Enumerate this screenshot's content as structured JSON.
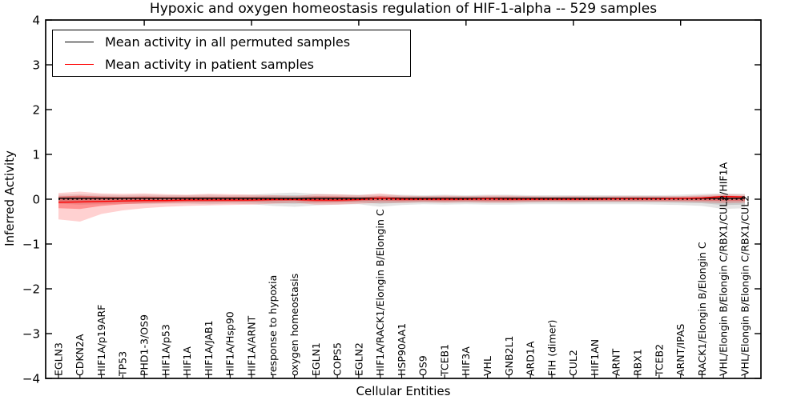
{
  "title": "Hypoxic and oxygen homeostasis regulation of HIF-1-alpha -- 529 samples",
  "axes": {
    "x_label": "Cellular Entities",
    "y_label": "Inferred Activity",
    "y_tick_labels": [
      "4",
      "3",
      "2",
      "1",
      "0",
      "−1",
      "−2",
      "−3",
      "−4"
    ],
    "y_tick_values": [
      4,
      3,
      2,
      1,
      0,
      -1,
      -2,
      -3,
      -4
    ]
  },
  "legend": {
    "entries": [
      {
        "label": "Mean activity in all permuted samples",
        "color": "#000000"
      },
      {
        "label": "Mean activity in patient samples",
        "color": "#ff0000"
      }
    ]
  },
  "colors": {
    "permuted_line": "#000000",
    "patient_line": "#ff0000",
    "zero_dotted_line": "#000000",
    "permuted_band_outer": "rgba(0,0,0,0.10)",
    "permuted_band_inner": "rgba(0,0,0,0.12)",
    "patient_band_outer": "rgba(255,0,0,0.18)",
    "patient_band_inner": "rgba(255,0,0,0.30)",
    "axis": "#000000"
  },
  "chart_data": {
    "type": "line",
    "title": "Hypoxic and oxygen homeostasis regulation of HIF-1-alpha -- 529 samples",
    "xlabel": "Cellular Entities",
    "ylabel": "Inferred Activity",
    "ylim": [
      -4,
      4
    ],
    "grid": false,
    "legend_position": "upper left",
    "x_tick_label_rotation": 90,
    "top_axis_major_tick_indices": [
      4,
      9,
      14,
      19,
      24,
      29
    ],
    "categories": [
      "EGLN3",
      "CDKN2A",
      "HIF1A/p19ARF",
      "TP53",
      "PHD1-3/OS9",
      "HIF1A/p53",
      "HIF1A",
      "HIF1A/JAB1",
      "HIF1A/Hsp90",
      "HIF1A/ARNT",
      "response to hypoxia",
      "oxygen homeostasis",
      "EGLN1",
      "COPS5",
      "EGLN2",
      "HIF1A/RACK1/Elongin B/Elongin C",
      "HSP90AA1",
      "OS9",
      "TCEB1",
      "HIF3A",
      "VHL",
      "GNB2L1",
      "ARD1A",
      "FIH (dimer)",
      "CUL2",
      "HIF1AN",
      "ARNT",
      "RBX1",
      "TCEB2",
      "ARNT/IPAS",
      "RACK1/Elongin B/Elongin C",
      "VHL/Elongin B/Elongin C/RBX1/CUL2/HIF1A",
      "VHL/Elongin B/Elongin C/RBX1/CUL2"
    ],
    "series": [
      {
        "name": "Mean activity in all permuted samples",
        "style": "solid",
        "color": "#000000",
        "values": [
          0.02,
          0.02,
          0.02,
          0.02,
          0.02,
          0.02,
          0.02,
          0.02,
          0.02,
          0.02,
          0.02,
          0.02,
          0.02,
          0.02,
          0.02,
          0.02,
          0.02,
          0.02,
          0.02,
          0.02,
          0.02,
          0.02,
          0.02,
          0.02,
          0.02,
          0.02,
          0.02,
          0.02,
          0.02,
          0.02,
          0.02,
          0.02,
          0.02
        ]
      },
      {
        "name": "Mean activity in patient samples",
        "style": "solid",
        "color": "#ff0000",
        "values": [
          -0.07,
          -0.06,
          -0.05,
          -0.04,
          -0.03,
          -0.03,
          -0.02,
          -0.02,
          -0.02,
          -0.02,
          -0.01,
          -0.01,
          -0.02,
          -0.02,
          -0.01,
          0.02,
          0.0,
          0.0,
          0.0,
          0.0,
          0.01,
          0.0,
          0.0,
          0.0,
          0.0,
          0.0,
          0.01,
          0.01,
          0.01,
          0.02,
          0.03,
          0.06,
          0.05
        ]
      },
      {
        "name": "zero reference",
        "style": "dotted",
        "color": "#000000",
        "values": [
          0,
          0,
          0,
          0,
          0,
          0,
          0,
          0,
          0,
          0,
          0,
          0,
          0,
          0,
          0,
          0,
          0,
          0,
          0,
          0,
          0,
          0,
          0,
          0,
          0,
          0,
          0,
          0,
          0,
          0,
          0,
          0,
          0
        ]
      }
    ],
    "bands": [
      {
        "name": "permuted samples outer band",
        "color": "rgba(0,0,0,0.10)",
        "upper": [
          0.1,
          0.11,
          0.1,
          0.09,
          0.1,
          0.09,
          0.09,
          0.1,
          0.09,
          0.1,
          0.13,
          0.15,
          0.12,
          0.1,
          0.1,
          0.1,
          0.1,
          0.09,
          0.1,
          0.09,
          0.1,
          0.1,
          0.09,
          0.09,
          0.09,
          0.09,
          0.09,
          0.09,
          0.09,
          0.1,
          0.12,
          0.13,
          0.12
        ],
        "lower": [
          -0.1,
          -0.12,
          -0.11,
          -0.1,
          -0.11,
          -0.1,
          -0.1,
          -0.11,
          -0.1,
          -0.11,
          -0.15,
          -0.17,
          -0.14,
          -0.12,
          -0.11,
          -0.17,
          -0.13,
          -0.11,
          -0.12,
          -0.11,
          -0.12,
          -0.12,
          -0.11,
          -0.11,
          -0.11,
          -0.11,
          -0.11,
          -0.11,
          -0.12,
          -0.13,
          -0.15,
          -0.22,
          -0.2
        ]
      },
      {
        "name": "permuted samples inner band",
        "color": "rgba(0,0,0,0.12)",
        "upper": [
          0.06,
          0.07,
          0.06,
          0.06,
          0.06,
          0.06,
          0.06,
          0.06,
          0.06,
          0.06,
          0.08,
          0.09,
          0.07,
          0.06,
          0.06,
          0.06,
          0.06,
          0.06,
          0.06,
          0.06,
          0.06,
          0.06,
          0.06,
          0.06,
          0.06,
          0.06,
          0.06,
          0.06,
          0.06,
          0.06,
          0.07,
          0.08,
          0.07
        ],
        "lower": [
          -0.06,
          -0.07,
          -0.07,
          -0.06,
          -0.07,
          -0.06,
          -0.06,
          -0.07,
          -0.06,
          -0.07,
          -0.09,
          -0.1,
          -0.08,
          -0.07,
          -0.07,
          -0.1,
          -0.08,
          -0.07,
          -0.07,
          -0.07,
          -0.07,
          -0.07,
          -0.07,
          -0.07,
          -0.07,
          -0.07,
          -0.07,
          -0.07,
          -0.07,
          -0.08,
          -0.09,
          -0.13,
          -0.12
        ]
      },
      {
        "name": "patient samples outer band",
        "color": "rgba(255,0,0,0.18)",
        "upper": [
          0.14,
          0.17,
          0.13,
          0.12,
          0.13,
          0.11,
          0.1,
          0.12,
          0.11,
          0.1,
          0.09,
          0.07,
          0.11,
          0.11,
          0.09,
          0.13,
          0.08,
          0.07,
          0.08,
          0.07,
          0.08,
          0.08,
          0.07,
          0.06,
          0.07,
          0.06,
          0.07,
          0.07,
          0.07,
          0.07,
          0.09,
          0.11,
          0.1
        ],
        "lower": [
          -0.45,
          -0.5,
          -0.33,
          -0.25,
          -0.2,
          -0.17,
          -0.15,
          -0.14,
          -0.13,
          -0.12,
          -0.1,
          -0.08,
          -0.12,
          -0.12,
          -0.1,
          -0.08,
          -0.08,
          -0.07,
          -0.08,
          -0.07,
          -0.08,
          -0.08,
          -0.07,
          -0.06,
          -0.07,
          -0.06,
          -0.06,
          -0.06,
          -0.06,
          -0.06,
          -0.07,
          -0.09,
          -0.08
        ]
      },
      {
        "name": "patient samples inner band",
        "color": "rgba(255,0,0,0.30)",
        "upper": [
          0.06,
          0.08,
          0.06,
          0.05,
          0.06,
          0.05,
          0.05,
          0.05,
          0.05,
          0.05,
          0.04,
          0.03,
          0.06,
          0.06,
          0.04,
          0.07,
          0.04,
          0.03,
          0.04,
          0.03,
          0.04,
          0.04,
          0.03,
          0.03,
          0.03,
          0.03,
          0.03,
          0.03,
          0.03,
          0.03,
          0.04,
          0.06,
          0.05
        ],
        "lower": [
          -0.2,
          -0.22,
          -0.15,
          -0.11,
          -0.09,
          -0.08,
          -0.07,
          -0.06,
          -0.06,
          -0.05,
          -0.04,
          -0.03,
          -0.06,
          -0.06,
          -0.04,
          -0.03,
          -0.04,
          -0.03,
          -0.04,
          -0.03,
          -0.04,
          -0.04,
          -0.03,
          -0.03,
          -0.03,
          -0.03,
          -0.03,
          -0.03,
          -0.03,
          -0.03,
          -0.03,
          -0.04,
          -0.04
        ]
      }
    ]
  }
}
